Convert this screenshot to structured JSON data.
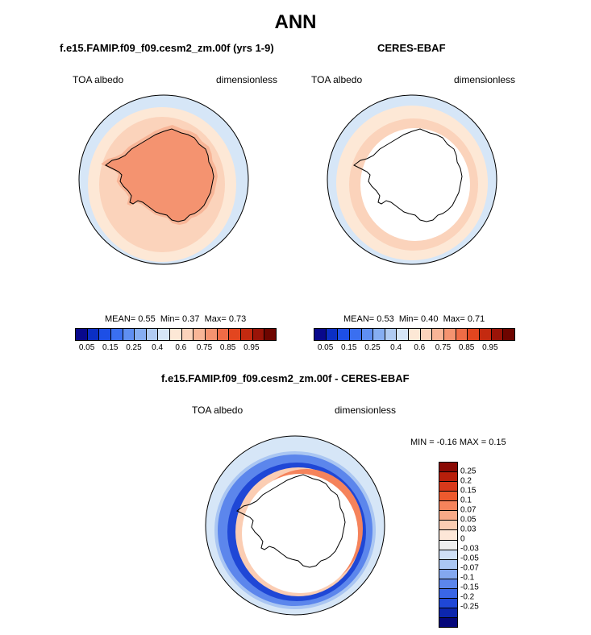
{
  "title": "ANN",
  "panels": [
    {
      "title": "f.e15.FAMIP.f09_f09.cesm2_zm.00f (yrs 1-9)",
      "variable": "TOA albedo",
      "units": "dimensionless",
      "stats": {
        "mean_label": "MEAN=",
        "mean": "0.55",
        "min_label": "Min=",
        "min": "0.37",
        "max_label": "Max=",
        "max": "0.73"
      }
    },
    {
      "title": "CERES-EBAF",
      "variable": "TOA albedo",
      "units": "dimensionless",
      "stats": {
        "mean_label": "MEAN=",
        "mean": "0.53",
        "min_label": "Min=",
        "min": "0.40",
        "max_label": "Max=",
        "max": "0.71"
      }
    },
    {
      "title": "f.e15.FAMIP.f09_f09.cesm2_zm.00f - CERES-EBAF",
      "variable": "TOA albedo",
      "units": "dimensionless",
      "stats": {
        "min_label": "MIN =",
        "min": "-0.16",
        "max_label": "MAX =",
        "max": "0.15"
      }
    }
  ],
  "colorbar_main": {
    "colors": [
      "#08088c",
      "#0b2fc4",
      "#1d4fe6",
      "#3a6ff0",
      "#5f8ff2",
      "#86aef2",
      "#b0cbf2",
      "#d6e6f7",
      "#fde8d6",
      "#fbd3bb",
      "#f8b597",
      "#f49370",
      "#ef6c46",
      "#e3461f",
      "#c42a10",
      "#9a1408",
      "#6e0500"
    ],
    "tick_labels": [
      "0.05",
      "0.15",
      "0.25",
      "0.4",
      "0.6",
      "0.75",
      "0.85",
      "0.95"
    ]
  },
  "colorbar_diff": {
    "colors": [
      "#8a0a04",
      "#b81f0b",
      "#d8391b",
      "#ee5a2e",
      "#f5835b",
      "#f8a987",
      "#fbcdb3",
      "#fde7d8",
      "#eeeeee",
      "#cfe0f7",
      "#aac6f2",
      "#84a8ef",
      "#5c86ec",
      "#3a66e6",
      "#1f47d6",
      "#0c26ad",
      "#05077a"
    ],
    "tick_labels": [
      "0.25",
      "0.2",
      "0.15",
      "0.1",
      "0.07",
      "0.05",
      "0.03",
      "0",
      "-0.03",
      "-0.05",
      "-0.07",
      "-0.1",
      "-0.15",
      "-0.2",
      "-0.25"
    ]
  },
  "map_colors": {
    "ocean_far": "#d6e6f7",
    "ocean_band": "#fde8d6",
    "ocean_band2": "#fbd3bb",
    "continent": "#f49370",
    "continent_edge": "#f8b597",
    "no_data": "#ffffff",
    "diff_neg_light": "#aac6f2",
    "diff_neg_mid": "#5c86ec",
    "diff_neg_strong": "#1f47d6",
    "diff_pos": "#f5835b",
    "diff_pos_light": "#fbcdb3"
  }
}
